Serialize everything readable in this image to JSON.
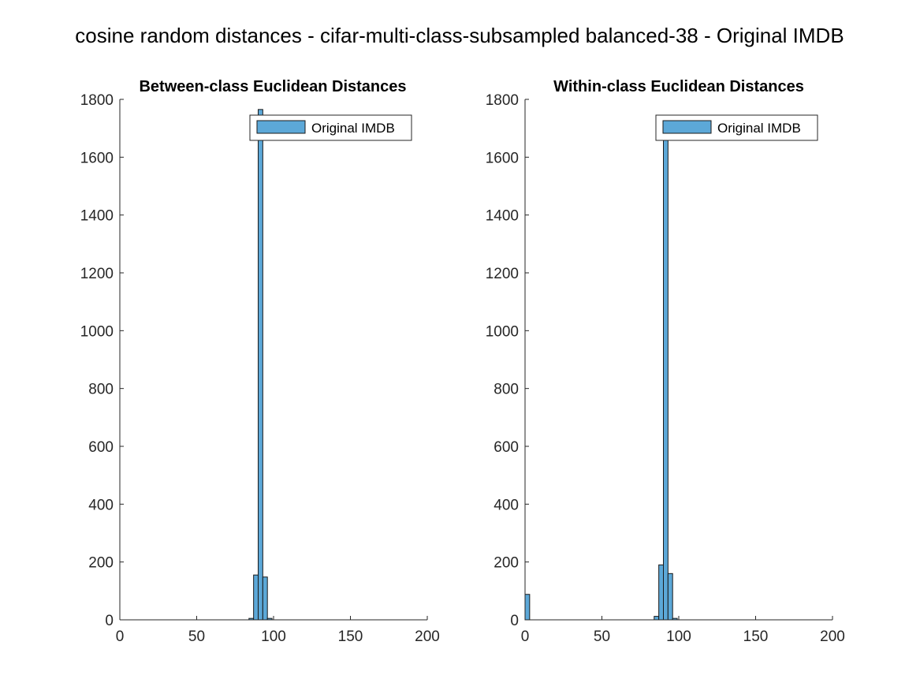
{
  "figure": {
    "suptitle": "cosine random distances - cifar-multi-class-subsampled balanced-38 - Original IMDB"
  },
  "colors": {
    "bar_fill": "#5ca8d8",
    "bar_edge": "#1a1a1a",
    "axis": "#262626",
    "legend_edge": "#262626"
  },
  "chart_data": [
    {
      "type": "bar",
      "title": "Between-class Euclidean Distances",
      "xlabel": "",
      "ylabel": "",
      "xlim": [
        0,
        200
      ],
      "ylim": [
        0,
        1800
      ],
      "xticks": [
        0,
        50,
        100,
        150,
        200
      ],
      "yticks": [
        0,
        200,
        400,
        600,
        800,
        1000,
        1200,
        1400,
        1600,
        1800
      ],
      "grid": false,
      "legend": {
        "position": "top-right",
        "entries": [
          "Original IMDB"
        ]
      },
      "bin_width": 3,
      "series": [
        {
          "name": "Original IMDB",
          "bins": [
            {
              "x0": 0,
              "x1": 3,
              "count": 0
            },
            {
              "x0": 81,
              "x1": 84,
              "count": 0
            },
            {
              "x0": 84,
              "x1": 87,
              "count": 5
            },
            {
              "x0": 87,
              "x1": 90,
              "count": 155
            },
            {
              "x0": 90,
              "x1": 93,
              "count": 1765
            },
            {
              "x0": 93,
              "x1": 96,
              "count": 148
            },
            {
              "x0": 96,
              "x1": 99,
              "count": 5
            },
            {
              "x0": 99,
              "x1": 102,
              "count": 0
            },
            {
              "x0": 177,
              "x1": 180,
              "count": 0
            }
          ]
        }
      ]
    },
    {
      "type": "bar",
      "title": "Within-class Euclidean Distances",
      "xlabel": "",
      "ylabel": "",
      "xlim": [
        0,
        200
      ],
      "ylim": [
        0,
        1800
      ],
      "xticks": [
        0,
        50,
        100,
        150,
        200
      ],
      "yticks": [
        0,
        200,
        400,
        600,
        800,
        1000,
        1200,
        1400,
        1600,
        1800
      ],
      "grid": false,
      "legend": {
        "position": "top-right",
        "entries": [
          "Original IMDB"
        ]
      },
      "bin_width": 3,
      "series": [
        {
          "name": "Original IMDB",
          "bins": [
            {
              "x0": 0,
              "x1": 3,
              "count": 88
            },
            {
              "x0": 3,
              "x1": 6,
              "count": 0
            },
            {
              "x0": 81,
              "x1": 84,
              "count": 0
            },
            {
              "x0": 84,
              "x1": 87,
              "count": 12
            },
            {
              "x0": 87,
              "x1": 90,
              "count": 190
            },
            {
              "x0": 90,
              "x1": 93,
              "count": 1690
            },
            {
              "x0": 93,
              "x1": 96,
              "count": 160
            },
            {
              "x0": 96,
              "x1": 99,
              "count": 5
            },
            {
              "x0": 99,
              "x1": 102,
              "count": 0
            },
            {
              "x0": 177,
              "x1": 180,
              "count": 0
            }
          ]
        }
      ]
    }
  ]
}
